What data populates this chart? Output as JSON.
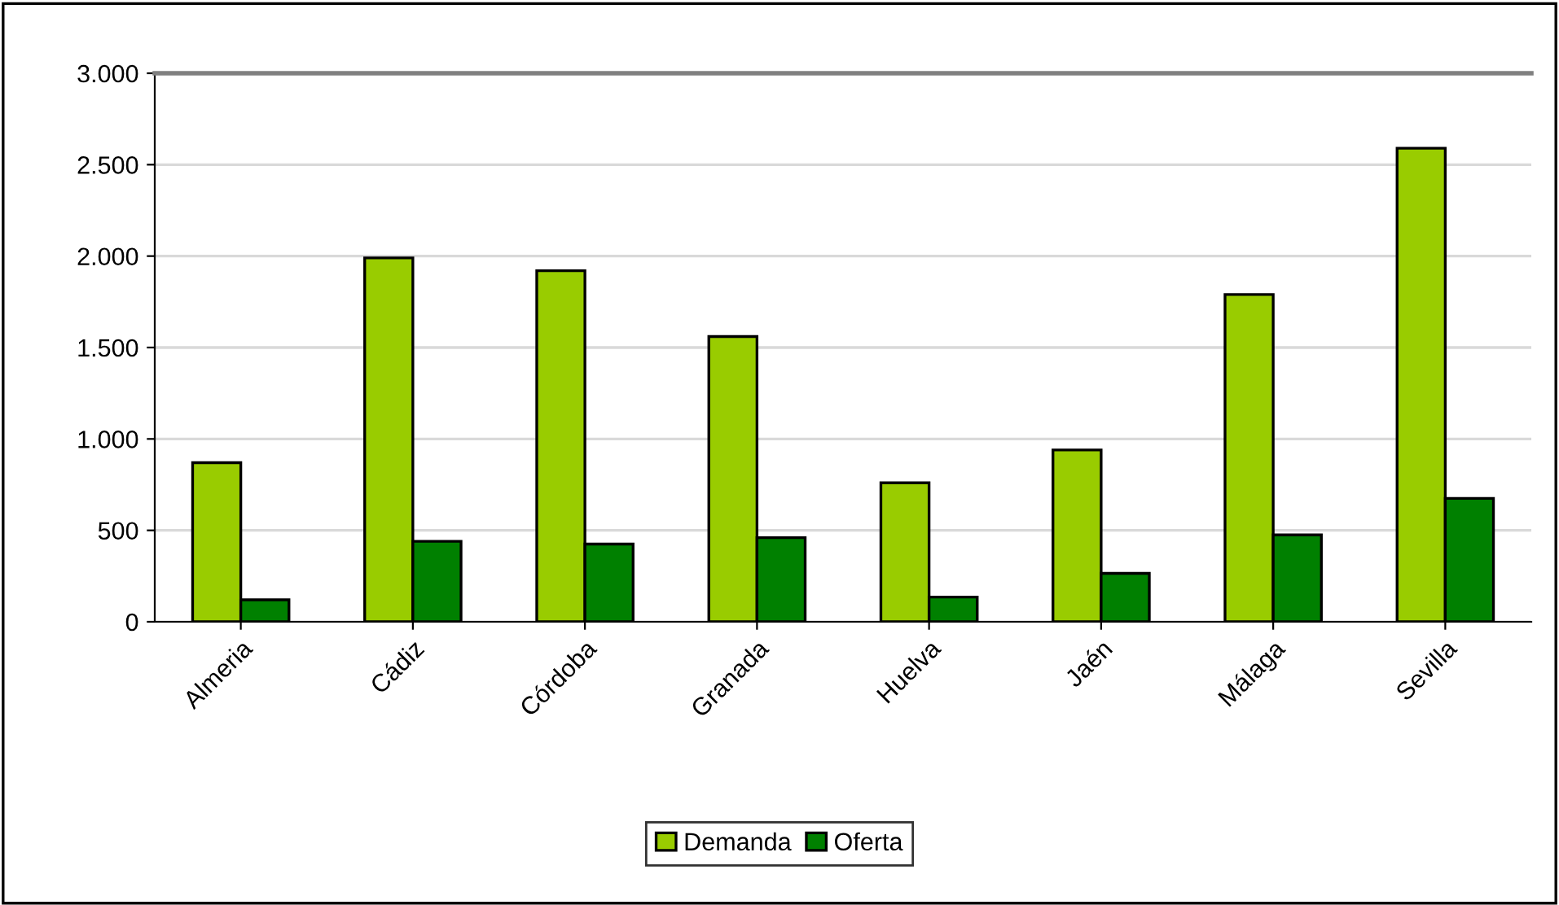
{
  "chart_data": {
    "type": "bar",
    "categories": [
      "Almeria",
      "Cádiz",
      "Córdoba",
      "Granada",
      "Huelva",
      "Jaén",
      "Málaga",
      "Sevilla"
    ],
    "series": [
      {
        "name": "Demanda",
        "color": "#99cc00",
        "values": [
          870,
          1990,
          1920,
          1560,
          760,
          940,
          1790,
          2590
        ]
      },
      {
        "name": "Oferta",
        "color": "#008000",
        "values": [
          120,
          440,
          425,
          460,
          135,
          265,
          475,
          675
        ]
      }
    ],
    "ylim": [
      0,
      3000
    ],
    "yticks": [
      {
        "value": 0,
        "label": "0"
      },
      {
        "value": 500,
        "label": "500"
      },
      {
        "value": 1000,
        "label": "1.000"
      },
      {
        "value": 1500,
        "label": "1.500"
      },
      {
        "value": 2000,
        "label": "2.000"
      },
      {
        "value": 2500,
        "label": "2.500"
      },
      {
        "value": 3000,
        "label": "3.000"
      }
    ],
    "grid": "y",
    "legend": "bottom"
  }
}
